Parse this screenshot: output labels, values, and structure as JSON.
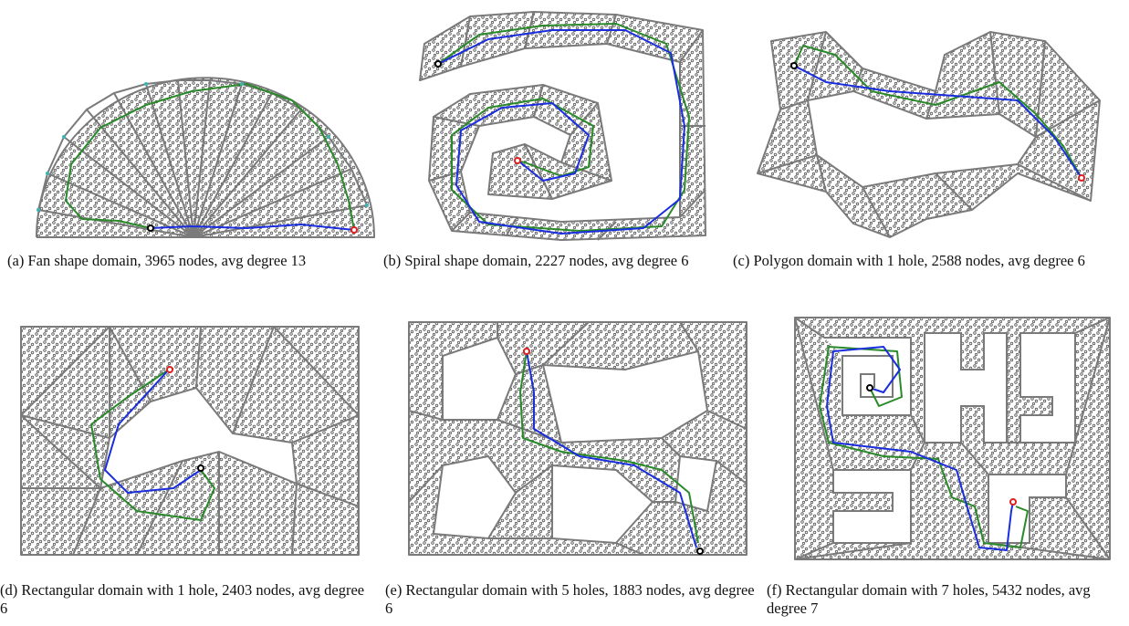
{
  "figure": {
    "panels": [
      {
        "id": "a",
        "caption": "(a) Fan shape domain, 3965 nodes, avg degree 13",
        "domain_shape": "fan",
        "holes": 0,
        "nodes": 3965,
        "avg_degree": 13
      },
      {
        "id": "b",
        "caption": "(b) Spiral shape domain, 2227 nodes, avg degree 6",
        "domain_shape": "spiral",
        "holes": 0,
        "nodes": 2227,
        "avg_degree": 6
      },
      {
        "id": "c",
        "caption": "(c) Polygon domain with 1 hole, 2588 nodes, avg degree 6",
        "domain_shape": "polygon",
        "holes": 1,
        "nodes": 2588,
        "avg_degree": 6
      },
      {
        "id": "d",
        "caption": "(d) Rectangular domain with 1 hole, 2403 nodes, avg degree 6",
        "domain_shape": "rectangle",
        "holes": 1,
        "nodes": 2403,
        "avg_degree": 6
      },
      {
        "id": "e",
        "caption": "(e) Rectangular domain with 5 holes, 1883 nodes, avg degree 6",
        "domain_shape": "rectangle",
        "holes": 5,
        "nodes": 1883,
        "avg_degree": 6
      },
      {
        "id": "f",
        "caption": "(f) Rectangular domain with 7 holes, 5432 nodes, avg degree 7",
        "domain_shape": "rectangle",
        "holes": 7,
        "nodes": 5432,
        "avg_degree": 7
      }
    ],
    "colors": {
      "triangulation_edges": "#7a7a7a",
      "route_green": "#2a8a2a",
      "route_blue": "#1a2ee0",
      "source_node": "#000000",
      "destination_node": "#e02020",
      "landmark_vertices": "#3fb3b3"
    }
  }
}
